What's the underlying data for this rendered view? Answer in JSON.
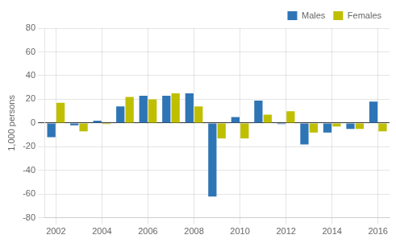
{
  "chart_data": {
    "type": "bar",
    "ylabel": "1,000 persons",
    "categories": [
      "2002",
      null,
      "2004",
      null,
      "2006",
      null,
      "2008",
      null,
      "2010",
      null,
      "2012",
      null,
      "2014",
      null,
      "2016"
    ],
    "series": [
      {
        "name": "Males",
        "color": "#2E75B6",
        "values": [
          -12,
          -2,
          2,
          14,
          23,
          23,
          25,
          -62,
          5,
          19,
          -1,
          -18,
          -8,
          -5,
          18
        ]
      },
      {
        "name": "Females",
        "color": "#BFBF00",
        "values": [
          17,
          -7,
          -1,
          22,
          20,
          25,
          14,
          -13,
          -13,
          7,
          10,
          -8,
          -3,
          -5,
          -7
        ]
      }
    ],
    "ylim": [
      -80,
      80
    ],
    "yticks": [
      -80,
      -60,
      -40,
      -20,
      0,
      20,
      40,
      60,
      80
    ],
    "grid": true,
    "legend": "upper right"
  }
}
